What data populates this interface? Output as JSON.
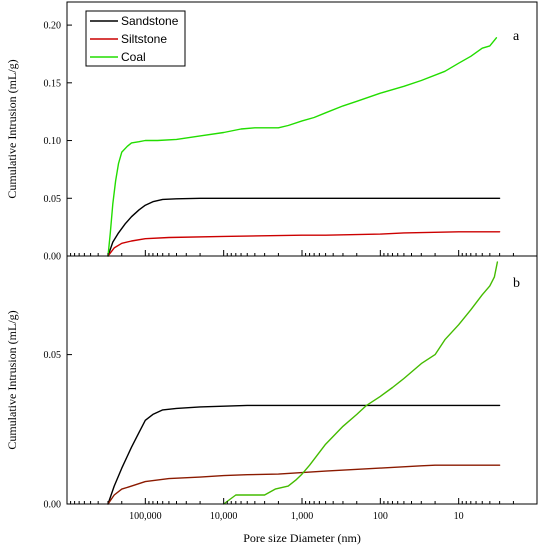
{
  "chart_data": [
    {
      "panel": "a",
      "type": "line",
      "xlabel": "",
      "ylabel": "Cumulative Intrusion (mL/g)",
      "x_scale": "log",
      "x_reversed": true,
      "xlim": [
        1000000,
        1
      ],
      "ylim": [
        0,
        0.22
      ],
      "yticks": [
        0.0,
        0.05,
        0.1,
        0.15,
        0.2
      ],
      "ytick_labels": [
        "0.00",
        "0.05",
        "0.10",
        "0.15",
        "0.20"
      ],
      "legend": {
        "placement": "top-left",
        "entries": [
          "Sandstone",
          "Siltstone",
          "Coal"
        ]
      },
      "series": [
        {
          "name": "Sandstone",
          "color": "#000000",
          "points": [
            [
              300000,
              0
            ],
            [
              260000,
              0.012
            ],
            [
              220000,
              0.02
            ],
            [
              180000,
              0.028
            ],
            [
              150000,
              0.034
            ],
            [
              120000,
              0.04
            ],
            [
              100000,
              0.044
            ],
            [
              80000,
              0.047
            ],
            [
              60000,
              0.049
            ],
            [
              40000,
              0.0495
            ],
            [
              20000,
              0.05
            ],
            [
              5000,
              0.05
            ],
            [
              1000,
              0.05
            ],
            [
              100,
              0.05
            ],
            [
              10,
              0.05
            ],
            [
              3,
              0.05
            ]
          ]
        },
        {
          "name": "Siltstone",
          "color": "#cc0000",
          "points": [
            [
              300000,
              0
            ],
            [
              250000,
              0.007
            ],
            [
              200000,
              0.011
            ],
            [
              150000,
              0.013
            ],
            [
              100000,
              0.015
            ],
            [
              50000,
              0.016
            ],
            [
              10000,
              0.017
            ],
            [
              1000,
              0.018
            ],
            [
              500,
              0.018
            ],
            [
              100,
              0.019
            ],
            [
              50,
              0.02
            ],
            [
              10,
              0.021
            ],
            [
              3,
              0.021
            ]
          ]
        },
        {
          "name": "Coal",
          "color": "#22dd00",
          "points": [
            [
              300000,
              0
            ],
            [
              280000,
              0.02
            ],
            [
              260000,
              0.045
            ],
            [
              240000,
              0.065
            ],
            [
              220000,
              0.08
            ],
            [
              200000,
              0.09
            ],
            [
              170000,
              0.095
            ],
            [
              150000,
              0.098
            ],
            [
              120000,
              0.099
            ],
            [
              100000,
              0.1
            ],
            [
              70000,
              0.1
            ],
            [
              40000,
              0.101
            ],
            [
              20000,
              0.104
            ],
            [
              10000,
              0.107
            ],
            [
              6000,
              0.11
            ],
            [
              4000,
              0.111
            ],
            [
              2000,
              0.111
            ],
            [
              1500,
              0.113
            ],
            [
              1000,
              0.117
            ],
            [
              700,
              0.12
            ],
            [
              500,
              0.124
            ],
            [
              300,
              0.13
            ],
            [
              200,
              0.134
            ],
            [
              100,
              0.141
            ],
            [
              50,
              0.147
            ],
            [
              30,
              0.152
            ],
            [
              15,
              0.16
            ],
            [
              10,
              0.167
            ],
            [
              7,
              0.173
            ],
            [
              5,
              0.18
            ],
            [
              4,
              0.182
            ],
            [
              3.3,
              0.189
            ]
          ]
        }
      ],
      "panel_label": "a"
    },
    {
      "panel": "b",
      "type": "line",
      "xlabel": "Pore size Diameter (nm)",
      "ylabel": "Cumulative Intrusion (mL/g)",
      "x_scale": "log",
      "x_reversed": true,
      "xlim": [
        1000000,
        1
      ],
      "xticks": [
        100000,
        10000,
        1000,
        100,
        10
      ],
      "xtick_labels": [
        "100,000",
        "10,000",
        "1,000",
        "100",
        "10"
      ],
      "ylim": [
        0,
        0.083
      ],
      "yticks": [
        0.0,
        0.05
      ],
      "ytick_labels": [
        "0.00",
        "0.05"
      ],
      "series": [
        {
          "name": "Sandstone",
          "color": "#000000",
          "points": [
            [
              300000,
              0
            ],
            [
              250000,
              0.006
            ],
            [
              200000,
              0.012
            ],
            [
              150000,
              0.019
            ],
            [
              120000,
              0.024
            ],
            [
              100000,
              0.028
            ],
            [
              80000,
              0.03
            ],
            [
              60000,
              0.0315
            ],
            [
              40000,
              0.032
            ],
            [
              20000,
              0.0325
            ],
            [
              5000,
              0.033
            ],
            [
              1000,
              0.033
            ],
            [
              100,
              0.033
            ],
            [
              10,
              0.033
            ],
            [
              3,
              0.033
            ]
          ]
        },
        {
          "name": "Siltstone",
          "color": "#8b1a00",
          "points": [
            [
              300000,
              0
            ],
            [
              250000,
              0.003
            ],
            [
              200000,
              0.005
            ],
            [
              150000,
              0.006
            ],
            [
              100000,
              0.0075
            ],
            [
              50000,
              0.0085
            ],
            [
              20000,
              0.009
            ],
            [
              10000,
              0.0095
            ],
            [
              5000,
              0.0098
            ],
            [
              2000,
              0.01
            ],
            [
              1000,
              0.0105
            ],
            [
              500,
              0.011
            ],
            [
              100,
              0.012
            ],
            [
              30,
              0.0128
            ],
            [
              20,
              0.013
            ],
            [
              10,
              0.013
            ],
            [
              3,
              0.013
            ]
          ]
        },
        {
          "name": "Coal",
          "color": "#44bb00",
          "points": [
            [
              10000,
              0
            ],
            [
              7000,
              0.003
            ],
            [
              5000,
              0.003
            ],
            [
              3000,
              0.003
            ],
            [
              2200,
              0.005
            ],
            [
              1500,
              0.006
            ],
            [
              1200,
              0.008
            ],
            [
              1000,
              0.01
            ],
            [
              800,
              0.013
            ],
            [
              500,
              0.02
            ],
            [
              300,
              0.026
            ],
            [
              200,
              0.03
            ],
            [
              150,
              0.033
            ],
            [
              100,
              0.036
            ],
            [
              70,
              0.039
            ],
            [
              50,
              0.042
            ],
            [
              30,
              0.047
            ],
            [
              20,
              0.05
            ],
            [
              15,
              0.055
            ],
            [
              10,
              0.06
            ],
            [
              7,
              0.065
            ],
            [
              5,
              0.07
            ],
            [
              4,
              0.073
            ],
            [
              3.5,
              0.076
            ],
            [
              3.2,
              0.081
            ]
          ]
        }
      ],
      "panel_label": "b"
    }
  ]
}
